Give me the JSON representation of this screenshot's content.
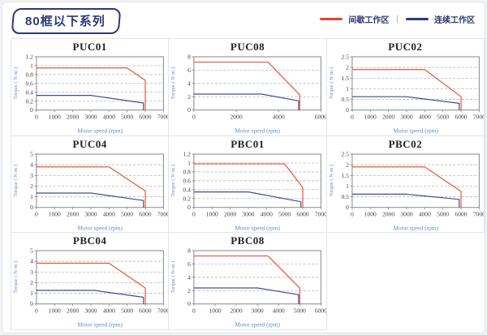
{
  "page": {
    "title": "80框以下系列",
    "legend_separator": "|",
    "legend": [
      {
        "name": "intermittent-zone",
        "label": "间歇工作区",
        "color": "#e8432c"
      },
      {
        "name": "continuous-zone",
        "label": "连续工作区",
        "color": "#2a3a8c"
      }
    ]
  },
  "colors": {
    "line_red": "#e8553a",
    "line_blue": "#3f4d9b",
    "frame": "#7a7a7a",
    "grid": "#a8a8a8",
    "tick_text": "#44403b",
    "axis_label": "#6487d0"
  },
  "chart_data": [
    {
      "type": "line",
      "title": "PUC01",
      "xlabel": "Motor speed (rpm)",
      "ylabel": "Torque ( N·m )",
      "xlim": [
        0,
        7000
      ],
      "xticks": [
        0,
        1000,
        2000,
        3000,
        4000,
        5000,
        6000,
        7000
      ],
      "ylim": [
        0,
        1.2
      ],
      "yticks": [
        0,
        0.2,
        0.4,
        0.6,
        0.8,
        1,
        1.2
      ],
      "grid": "horizontal-dashed",
      "legend_position": "none",
      "series": [
        {
          "name": "间歇工作区",
          "color": "#e8553a",
          "points": [
            [
              0,
              0.95
            ],
            [
              5000,
              0.95
            ],
            [
              6000,
              0.67
            ],
            [
              6000,
              0
            ]
          ]
        },
        {
          "name": "连续工作区",
          "color": "#3f4d9b",
          "points": [
            [
              0,
              0.33
            ],
            [
              3000,
              0.33
            ],
            [
              5900,
              0.16
            ],
            [
              5900,
              0
            ]
          ]
        }
      ]
    },
    {
      "type": "line",
      "title": "PUC08",
      "xlabel": "Motor speed (rpm)",
      "ylabel": "Torque ( N·m )",
      "xlim": [
        0,
        6000
      ],
      "xticks": [
        0,
        2000,
        4000,
        6000
      ],
      "ylim": [
        0,
        8
      ],
      "yticks": [
        0,
        2,
        4,
        6,
        8
      ],
      "grid": "horizontal-dashed",
      "legend_position": "none",
      "series": [
        {
          "name": "间歇工作区",
          "color": "#e8553a",
          "points": [
            [
              0,
              7.2
            ],
            [
              3500,
              7.2
            ],
            [
              5000,
              2.3
            ],
            [
              5000,
              0
            ]
          ]
        },
        {
          "name": "连续工作区",
          "color": "#3f4d9b",
          "points": [
            [
              0,
              2.4
            ],
            [
              3200,
              2.4
            ],
            [
              4950,
              1.4
            ],
            [
              4950,
              0
            ]
          ]
        }
      ]
    },
    {
      "type": "line",
      "title": "PUC02",
      "xlabel": "Motor speed (rpm)",
      "ylabel": "Torque ( N·m )",
      "xlim": [
        0,
        7000
      ],
      "xticks": [
        0,
        1000,
        2000,
        3000,
        4000,
        5000,
        6000,
        7000
      ],
      "ylim": [
        0,
        2.5
      ],
      "yticks": [
        0,
        0.5,
        1,
        1.5,
        2,
        2.5
      ],
      "grid": "horizontal-dashed",
      "legend_position": "none",
      "series": [
        {
          "name": "间歇工作区",
          "color": "#e8553a",
          "points": [
            [
              0,
              1.9
            ],
            [
              4000,
              1.9
            ],
            [
              6000,
              0.63
            ],
            [
              6000,
              0
            ]
          ]
        },
        {
          "name": "连续工作区",
          "color": "#3f4d9b",
          "points": [
            [
              0,
              0.63
            ],
            [
              3000,
              0.63
            ],
            [
              5900,
              0.32
            ],
            [
              5900,
              0
            ]
          ]
        }
      ]
    },
    {
      "type": "line",
      "title": "PUC04",
      "xlabel": "Motor speed (rpm)",
      "ylabel": "Torque ( N·m )",
      "xlim": [
        0,
        7000
      ],
      "xticks": [
        0,
        1000,
        2000,
        3000,
        4000,
        5000,
        6000,
        7000
      ],
      "ylim": [
        0,
        5
      ],
      "yticks": [
        0,
        1,
        2,
        3,
        4,
        5
      ],
      "grid": "horizontal-dashed",
      "legend_position": "none",
      "series": [
        {
          "name": "间歇工作区",
          "color": "#e8553a",
          "points": [
            [
              0,
              3.8
            ],
            [
              4000,
              3.8
            ],
            [
              6000,
              1.55
            ],
            [
              6000,
              0
            ]
          ]
        },
        {
          "name": "连续工作区",
          "color": "#3f4d9b",
          "points": [
            [
              0,
              1.35
            ],
            [
              3000,
              1.35
            ],
            [
              5900,
              0.65
            ],
            [
              5900,
              0
            ]
          ]
        }
      ]
    },
    {
      "type": "line",
      "title": "PBC01",
      "xlabel": "Motor speed (rpm)",
      "ylabel": "Torque ( N·m )",
      "xlim": [
        0,
        7000
      ],
      "xticks": [
        0,
        1000,
        2000,
        3000,
        4000,
        5000,
        6000,
        7000
      ],
      "ylim": [
        0,
        1.2
      ],
      "yticks": [
        0,
        0.2,
        0.4,
        0.6,
        0.8,
        1,
        1.2
      ],
      "grid": "horizontal-dashed",
      "legend_position": "none",
      "series": [
        {
          "name": "间歇工作区",
          "color": "#e8553a",
          "points": [
            [
              0,
              0.98
            ],
            [
              5000,
              0.98
            ],
            [
              6000,
              0.45
            ],
            [
              6000,
              0
            ]
          ]
        },
        {
          "name": "连续工作区",
          "color": "#3f4d9b",
          "points": [
            [
              0,
              0.35
            ],
            [
              3000,
              0.35
            ],
            [
              5900,
              0.13
            ],
            [
              5900,
              0
            ]
          ]
        }
      ]
    },
    {
      "type": "line",
      "title": "PBC02",
      "xlabel": "Motor speed (rpm)",
      "ylabel": "Torque ( N·m )",
      "xlim": [
        0,
        7000
      ],
      "xticks": [
        0,
        1000,
        2000,
        3000,
        4000,
        5000,
        6000,
        7000
      ],
      "ylim": [
        0,
        2.5
      ],
      "yticks": [
        0,
        0.5,
        1,
        1.5,
        2,
        2.5
      ],
      "grid": "horizontal-dashed",
      "legend_position": "none",
      "series": [
        {
          "name": "间歇工作区",
          "color": "#e8553a",
          "points": [
            [
              0,
              1.9
            ],
            [
              4000,
              1.9
            ],
            [
              6000,
              0.75
            ],
            [
              6000,
              0
            ]
          ]
        },
        {
          "name": "连续工作区",
          "color": "#3f4d9b",
          "points": [
            [
              0,
              0.62
            ],
            [
              3000,
              0.62
            ],
            [
              5900,
              0.38
            ],
            [
              5900,
              0
            ]
          ]
        }
      ]
    },
    {
      "type": "line",
      "title": "PBC04",
      "xlabel": "Motor speed (rpm)",
      "ylabel": "Torque ( N·m )",
      "xlim": [
        0,
        7000
      ],
      "xticks": [
        0,
        1000,
        2000,
        3000,
        4000,
        5000,
        6000,
        7000
      ],
      "ylim": [
        0,
        5
      ],
      "yticks": [
        0,
        1,
        2,
        3,
        4,
        5
      ],
      "grid": "horizontal-dashed",
      "legend_position": "none",
      "series": [
        {
          "name": "间歇工作区",
          "color": "#e8553a",
          "points": [
            [
              0,
              3.82
            ],
            [
              4000,
              3.82
            ],
            [
              6000,
              1.5
            ],
            [
              6000,
              0
            ]
          ]
        },
        {
          "name": "连续工作区",
          "color": "#3f4d9b",
          "points": [
            [
              0,
              1.27
            ],
            [
              3200,
              1.27
            ],
            [
              5900,
              0.63
            ],
            [
              5900,
              0
            ]
          ]
        }
      ]
    },
    {
      "type": "line",
      "title": "PBC08",
      "xlabel": "Motor speed (rpm)",
      "ylabel": "Torque ( N·m )",
      "xlim": [
        0,
        6000
      ],
      "xticks": [
        0,
        1000,
        2000,
        3000,
        4000,
        5000,
        6000
      ],
      "ylim": [
        0,
        8
      ],
      "yticks": [
        0,
        2,
        4,
        6,
        8
      ],
      "grid": "horizontal-dashed",
      "legend_position": "none",
      "series": [
        {
          "name": "间歇工作区",
          "color": "#e8553a",
          "points": [
            [
              0,
              7.2
            ],
            [
              3500,
              7.2
            ],
            [
              5000,
              2.4
            ],
            [
              5000,
              0
            ]
          ]
        },
        {
          "name": "连续工作区",
          "color": "#3f4d9b",
          "points": [
            [
              0,
              2.4
            ],
            [
              3000,
              2.4
            ],
            [
              4950,
              1.4
            ],
            [
              4950,
              0
            ]
          ]
        }
      ]
    }
  ]
}
